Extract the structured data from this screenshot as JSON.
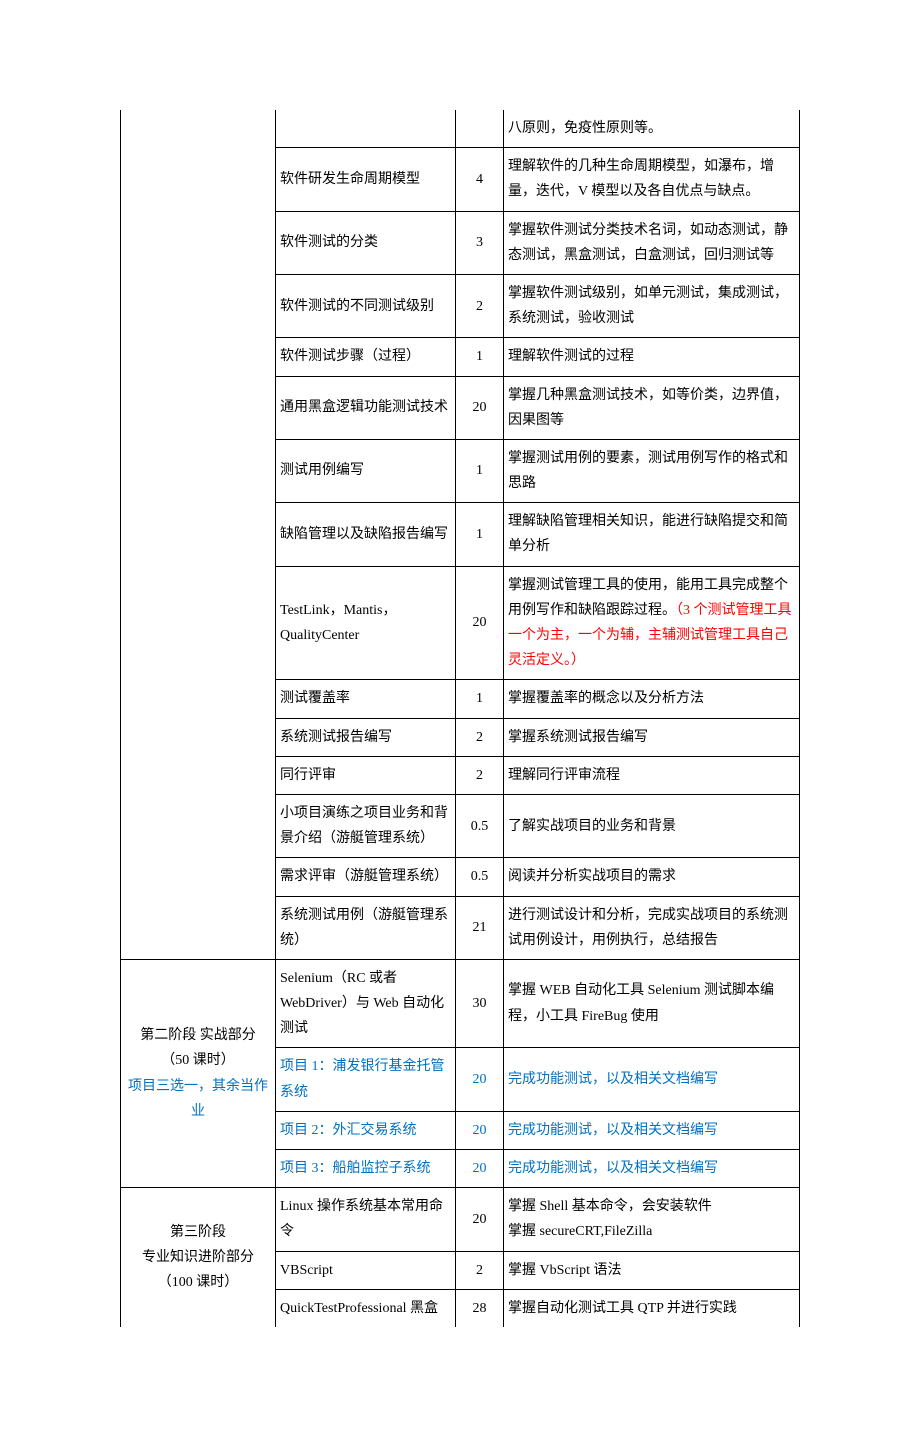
{
  "rows": [
    {
      "topic": "",
      "hours": "",
      "desc": "八原则，免疫性原则等。",
      "topicNoTop": true,
      "hoursNoTop": true,
      "descNoTop": true
    },
    {
      "topic": "软件研发生命周期模型",
      "hours": "4",
      "desc": "理解软件的几种生命周期模型，如瀑布，增量，迭代，V 模型以及各自优点与缺点。"
    },
    {
      "topic": "软件测试的分类",
      "hours": "3",
      "desc": "掌握软件测试分类技术名词，如动态测试，静态测试，黑盒测试，白盒测试，回归测试等"
    },
    {
      "topic": "软件测试的不同测试级别",
      "hours": "2",
      "desc": "掌握软件测试级别，如单元测试，集成测试，系统测试，验收测试"
    },
    {
      "topic": "软件测试步骤（过程）",
      "hours": "1",
      "desc": "理解软件测试的过程"
    },
    {
      "topic": "通用黑盒逻辑功能测试技术",
      "hours": "20",
      "desc": "掌握几种黑盒测试技术，如等价类，边界值，因果图等"
    },
    {
      "topic": "测试用例编写",
      "hours": "1",
      "desc": "掌握测试用例的要素，测试用例写作的格式和思路"
    },
    {
      "topic": "缺陷管理以及缺陷报告编写",
      "hours": "1",
      "desc": "理解缺陷管理相关知识，能进行缺陷提交和简单分析"
    },
    {
      "topic": "TestLink，Mantis，QualityCenter",
      "hours": "20",
      "descPrefix": "掌握测试管理工具的使用，能用工具完成整个用例写作和缺陷跟踪过程。",
      "descRed": "（3 个测试管理工具一个为主，一个为辅，主辅测试管理工具自己灵活定义。）"
    },
    {
      "topic": "测试覆盖率",
      "hours": "1",
      "desc": "掌握覆盖率的概念以及分析方法"
    },
    {
      "topic": "系统测试报告编写",
      "hours": "2",
      "desc": "掌握系统测试报告编写"
    },
    {
      "topic": "同行评审",
      "hours": "2",
      "desc": "理解同行评审流程"
    },
    {
      "topic": "小项目演练之项目业务和背景介绍（游艇管理系统）",
      "hours": "0.5",
      "desc": "了解实战项目的业务和背景"
    },
    {
      "topic": "需求评审（游艇管理系统）",
      "hours": "0.5",
      "desc": "阅读并分析实战项目的需求"
    },
    {
      "topic": "系统测试用例（游艇管理系统）",
      "hours": "21",
      "desc": "进行测试设计和分析，完成实战项目的系统测试用例设计，用例执行，总结报告"
    }
  ],
  "phase2": {
    "labelLine1": "第二阶段 实战部分",
    "labelLine2": "（50 课时）",
    "labelLine3": "项目三选一，其余当作业",
    "rows": [
      {
        "topic": "Selenium（RC 或者 WebDriver）与 Web 自动化测试",
        "hours": "30",
        "desc": "掌握 WEB 自动化工具 Selenium 测试脚本编程，小工具 FireBug 使用"
      },
      {
        "topic": "项目 1：浦发银行基金托管系统",
        "hours": "20",
        "desc": "完成功能测试，以及相关文档编写",
        "blue": true
      },
      {
        "topic": "项目 2：外汇交易系统",
        "hours": "20",
        "desc": "完成功能测试，以及相关文档编写",
        "blue": true
      },
      {
        "topic": "项目 3：船舶监控子系统",
        "hours": "20",
        "desc": "完成功能测试，以及相关文档编写",
        "blue": true
      }
    ]
  },
  "phase3": {
    "labelLine1": "第三阶段",
    "labelLine2": "专业知识进阶部分",
    "labelLine3": "（100 课时）",
    "rows": [
      {
        "topic": "Linux 操作系统基本常用命令",
        "hours": "20",
        "descLine1": "掌握 Shell 基本命令，会安装软件",
        "descLine2": "掌握 secureCRT,FileZilla"
      },
      {
        "topic": "VBScript",
        "hours": "2",
        "desc": "掌握 VbScript 语法"
      },
      {
        "topic": "QuickTestProfessional 黑盒",
        "hours": "28",
        "desc": "掌握自动化测试工具 QTP 并进行实践",
        "noBottom": true
      }
    ]
  }
}
